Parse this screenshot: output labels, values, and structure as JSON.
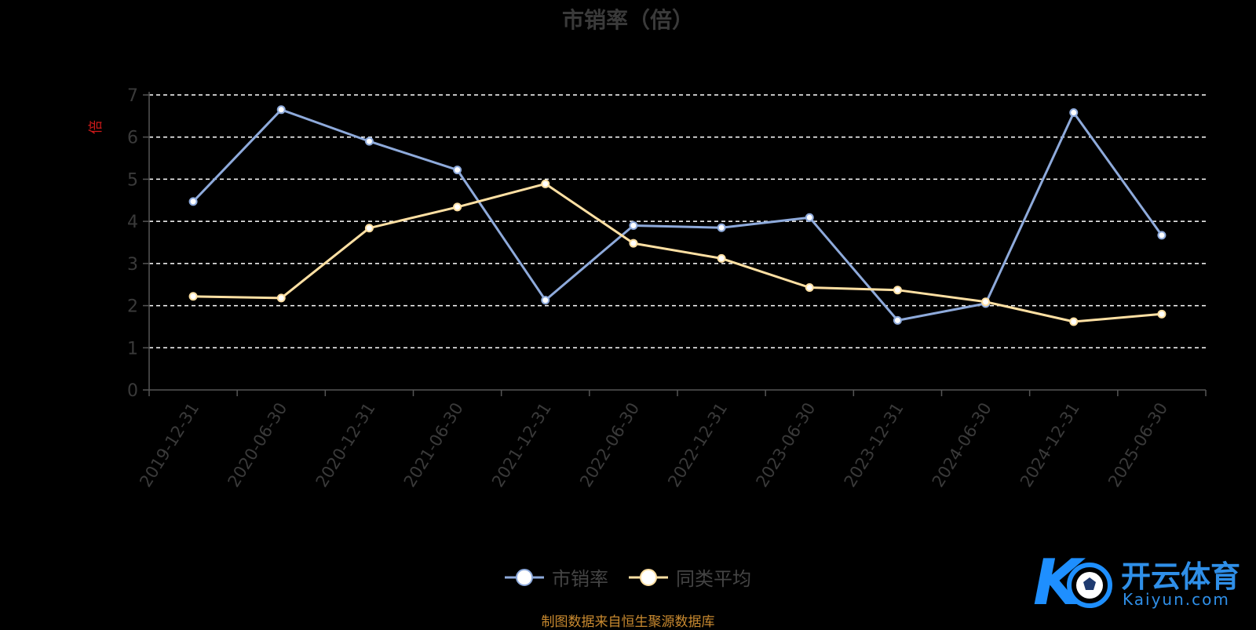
{
  "chart_data": {
    "type": "line",
    "title": "市销率（倍）",
    "ylabel": "倍",
    "xlabel": "",
    "categories": [
      "2019-12-31",
      "2020-06-30",
      "2020-12-31",
      "2021-06-30",
      "2021-12-31",
      "2022-06-30",
      "2022-12-31",
      "2023-06-30",
      "2023-12-31",
      "2024-06-30",
      "2024-12-31",
      "2025-06-30"
    ],
    "ylim": [
      0,
      7
    ],
    "yticks": [
      0,
      1,
      2,
      3,
      4,
      5,
      6,
      7
    ],
    "grid": true,
    "legend_position": "bottom",
    "series": [
      {
        "name": "市销率",
        "color": "#8eaadb",
        "values": [
          4.47,
          6.65,
          5.9,
          5.22,
          2.13,
          3.9,
          3.85,
          4.09,
          1.65,
          2.05,
          6.58,
          3.67
        ]
      },
      {
        "name": "同类平均",
        "color": "#ffe0a3",
        "values": [
          2.22,
          2.18,
          3.84,
          4.34,
          4.89,
          3.48,
          3.12,
          2.43,
          2.37,
          2.09,
          1.62,
          1.8
        ]
      }
    ]
  },
  "footer": {
    "source": "制图数据来自恒生聚源数据库"
  },
  "logo": {
    "main": "开云体育",
    "sub": "Kaiyun.com"
  }
}
